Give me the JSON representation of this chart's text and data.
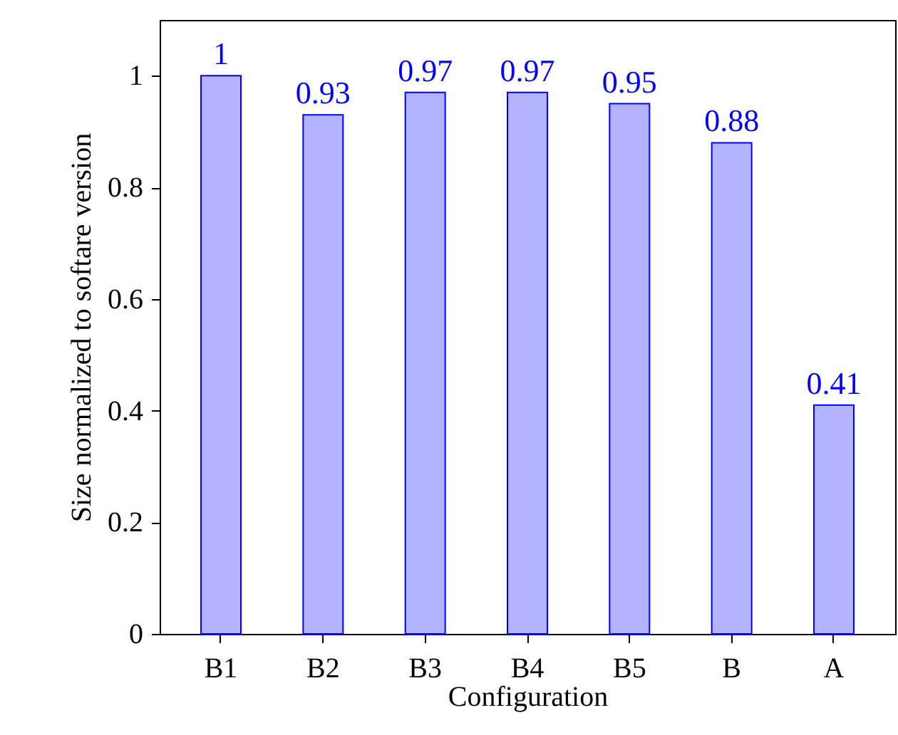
{
  "chart_data": {
    "type": "bar",
    "xlabel": "Configuration",
    "ylabel": "Size normalized to softare version",
    "categories": [
      "B1",
      "B2",
      "B3",
      "B4",
      "B5",
      "B",
      "A"
    ],
    "series": [
      {
        "color": "#b3b3ff",
        "values": [
          1,
          0.93,
          0.97,
          0.97,
          0.95,
          0.88,
          0.41
        ]
      }
    ],
    "ylim": [
      0,
      1.1
    ],
    "yticks": [
      0,
      0.2,
      0.4,
      0.6,
      0.8,
      1
    ],
    "grid": false,
    "data_labels": true
  }
}
